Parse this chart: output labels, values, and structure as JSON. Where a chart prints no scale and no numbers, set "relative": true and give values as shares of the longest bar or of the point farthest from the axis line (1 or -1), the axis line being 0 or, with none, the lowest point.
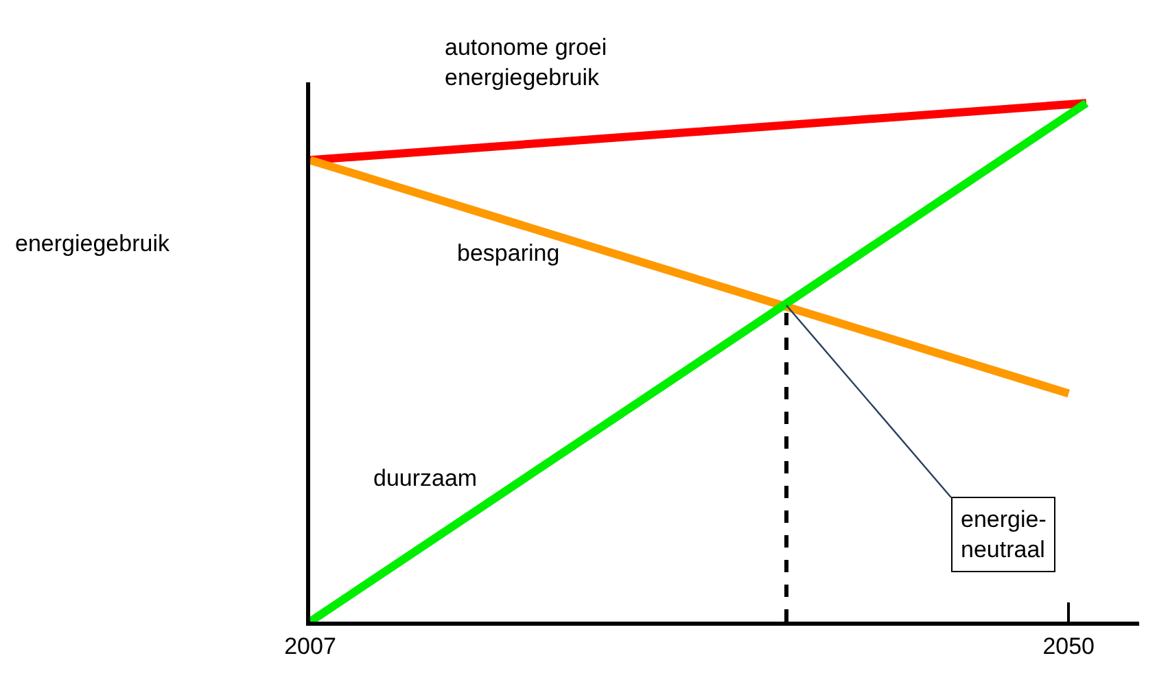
{
  "chart_data": {
    "type": "line",
    "relative": true,
    "ylabel": "energiegebruik",
    "series": [
      {
        "name": "autonome groei energiegebruik",
        "color": "#ff0000",
        "x": [
          2007,
          2051
        ],
        "values": [
          0.89,
          1
        ]
      },
      {
        "name": "besparing",
        "color": "#ff9900",
        "x": [
          2007,
          2050
        ],
        "values": [
          0.89,
          0.44
        ]
      },
      {
        "name": "duurzaam",
        "color": "#00ee00",
        "x": [
          2007,
          2051
        ],
        "values": [
          0,
          1
        ]
      }
    ],
    "xlim": [
      2007,
      2054
    ],
    "xticks": [
      2007,
      2050
    ],
    "ref_lines": [
      {
        "axis": "x",
        "value": 2034,
        "label": null,
        "line_style": "dashed",
        "color": "#000000"
      }
    ],
    "annotations": [
      {
        "text": "energie-\nneutraal",
        "x": 2034,
        "y": 0.61
      }
    ],
    "legend": false,
    "marker": "none",
    "line_style": "solid"
  }
}
